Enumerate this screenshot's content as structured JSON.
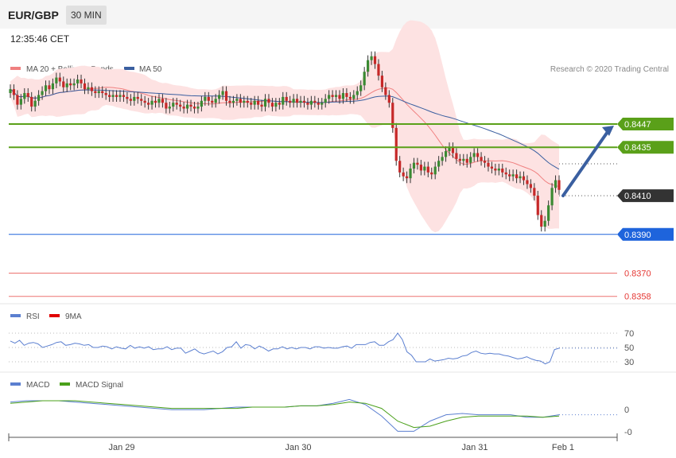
{
  "header": {
    "pair": "EUR/GBP",
    "timeframe": "30 MIN"
  },
  "timestamp": "12:35:46 CET",
  "copyright": "Research © 2020 Trading Central",
  "colors": {
    "candle_up": "#3a8a32",
    "candle_down": "#c62828",
    "ma20": "#f08080",
    "ma50": "#3a5fa0",
    "band_fill": "#fde2e2",
    "resistance": "#5aa019",
    "support": "#1e64dc",
    "target_red": "#e53935",
    "current_price": "#333333",
    "rsi": "#5b7fd0",
    "rsi_ma": "#e00000",
    "macd": "#5b7fd0",
    "macd_signal": "#4aa01a"
  },
  "chart_data": [
    {
      "type": "candlestick",
      "legend": [
        "MA 20 + Bollinger Bands",
        "MA 50"
      ],
      "ylim": [
        0.8355,
        0.847
      ],
      "x_labels": [
        "Jan 29",
        "Jan 30",
        "Jan 31",
        "Feb 1"
      ],
      "levels": [
        {
          "value": 0.8447,
          "label": "0.8447",
          "kind": "resistance"
        },
        {
          "value": 0.8435,
          "label": "0.8435",
          "kind": "resistance"
        },
        {
          "value": 0.841,
          "label": "0.8410",
          "kind": "current"
        },
        {
          "value": 0.839,
          "label": "0.8390",
          "kind": "support"
        },
        {
          "value": 0.837,
          "label": "0.8370",
          "kind": "target"
        },
        {
          "value": 0.8358,
          "label": "0.8358",
          "kind": "target"
        }
      ],
      "close": [
        0.8465,
        0.8462,
        0.8457,
        0.846,
        0.8463,
        0.8461,
        0.8456,
        0.8459,
        0.8462,
        0.8464,
        0.8467,
        0.8465,
        0.8468,
        0.8471,
        0.8469,
        0.8466,
        0.8468,
        0.8467,
        0.8468,
        0.847,
        0.8468,
        0.8465,
        0.8466,
        0.8464,
        0.8463,
        0.8464,
        0.8463,
        0.8462,
        0.8461,
        0.8462,
        0.8461,
        0.8462,
        0.8461,
        0.846,
        0.8459,
        0.8461,
        0.846,
        0.8459,
        0.8458,
        0.8457,
        0.8459,
        0.8458,
        0.846,
        0.8458,
        0.8455,
        0.8456,
        0.8458,
        0.8457,
        0.8456,
        0.8455,
        0.8457,
        0.8456,
        0.8455,
        0.8456,
        0.8459,
        0.8461,
        0.8459,
        0.8458,
        0.846,
        0.8462,
        0.8464,
        0.8459,
        0.8458,
        0.8459,
        0.846,
        0.8458,
        0.8459,
        0.8458,
        0.8457,
        0.8459,
        0.8457,
        0.8456,
        0.846,
        0.8458,
        0.8456,
        0.8458,
        0.8457,
        0.8461,
        0.8459,
        0.8458,
        0.846,
        0.8458,
        0.8459,
        0.8458,
        0.8457,
        0.8459,
        0.8458,
        0.8457,
        0.8458,
        0.846,
        0.8462,
        0.8461,
        0.8462,
        0.846,
        0.8463,
        0.8461,
        0.846,
        0.8462,
        0.8464,
        0.8467,
        0.8474,
        0.848,
        0.8482,
        0.8478,
        0.8472,
        0.8466,
        0.8462,
        0.8458,
        0.8445,
        0.8428,
        0.8422,
        0.842,
        0.8419,
        0.8424,
        0.8427,
        0.8426,
        0.8423,
        0.8425,
        0.8422,
        0.8421,
        0.8425,
        0.8428,
        0.843,
        0.8433,
        0.8435,
        0.8432,
        0.8429,
        0.8428,
        0.8429,
        0.8427,
        0.843,
        0.8432,
        0.843,
        0.8428,
        0.8427,
        0.8425,
        0.8424,
        0.8423,
        0.8424,
        0.8422,
        0.8421,
        0.842,
        0.8421,
        0.8419,
        0.842,
        0.8418,
        0.8416,
        0.8414,
        0.841,
        0.84,
        0.8394,
        0.8397,
        0.8405,
        0.8414,
        0.8418,
        0.8413
      ],
      "rsi_ma": [
        59,
        56,
        60,
        53,
        56,
        57,
        55,
        50,
        52,
        54,
        57,
        58,
        53,
        54,
        56,
        55,
        53,
        54,
        50,
        50,
        52,
        51,
        48,
        51,
        49,
        48,
        53,
        49,
        51,
        49,
        51,
        47,
        48,
        48,
        51,
        47,
        49,
        49,
        42,
        45,
        48,
        43,
        41,
        43,
        45,
        41,
        44,
        50,
        51,
        58,
        49,
        54,
        53,
        48,
        52,
        49,
        45,
        48,
        48,
        51,
        48,
        50,
        48,
        50,
        50,
        48,
        51,
        51,
        49,
        50,
        49,
        49,
        51,
        52,
        49,
        54,
        54,
        54,
        57,
        58,
        53,
        53,
        58,
        61,
        70,
        61,
        44,
        39,
        30,
        30,
        30,
        34,
        31,
        32,
        33,
        35,
        34,
        35,
        38,
        39,
        43,
        45,
        42,
        41,
        42,
        41,
        41,
        39,
        38,
        36,
        34,
        35,
        37,
        34,
        32,
        31,
        27,
        30,
        47,
        49
      ],
      "macd_series": [
        {
          "name": "MACD",
          "values": [
            0.0009,
            0.001,
            0.001,
            0.001,
            0.0009,
            0.0008,
            0.0007,
            0.0006,
            0.0005,
            0.0004,
            0.0003,
            0.0003,
            0.0003,
            0.0004,
            0.0005,
            0.0005,
            0.0005,
            0.0005,
            0.0006,
            0.0006,
            0.0008,
            0.0011,
            0.0007,
            -0.0002,
            -0.0014,
            -0.0014,
            -0.0006,
            -0.0001,
            0.0,
            -0.0001,
            -0.0001,
            -0.0001,
            -0.0003,
            -0.0003,
            -0.0001
          ]
        },
        {
          "name": "MACD Signal",
          "values": [
            0.0008,
            0.0009,
            0.001,
            0.001,
            0.001,
            0.0009,
            0.0008,
            0.0007,
            0.0006,
            0.0005,
            0.0004,
            0.0004,
            0.0004,
            0.0004,
            0.0004,
            0.0005,
            0.0005,
            0.0005,
            0.0006,
            0.0006,
            0.0007,
            0.0009,
            0.0008,
            0.0004,
            -0.0006,
            -0.0011,
            -0.001,
            -0.0006,
            -0.0003,
            -0.0002,
            -0.0002,
            -0.0002,
            -0.0002,
            -0.0003,
            -0.0002
          ]
        }
      ]
    }
  ],
  "rsi_panel": {
    "legend": [
      "RSI",
      "9MA"
    ],
    "ticks": [
      "70",
      "50",
      "30"
    ]
  },
  "macd_panel": {
    "legend": [
      "MACD",
      "MACD Signal"
    ],
    "ticks": [
      "0",
      "-0"
    ]
  }
}
